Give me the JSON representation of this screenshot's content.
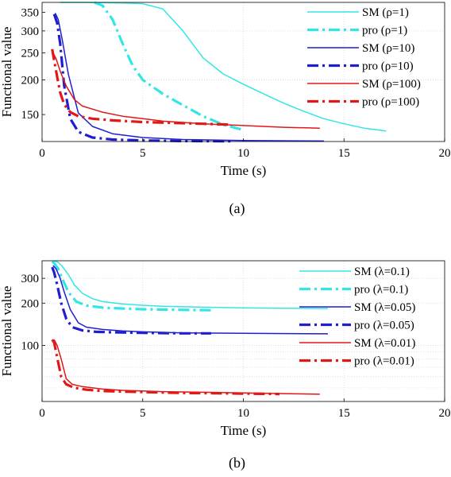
{
  "chart_data": [
    {
      "type": "line",
      "caption": "(a)",
      "xlabel": "Time (s)",
      "ylabel": "Functional value",
      "xlim": [
        0,
        20
      ],
      "ylim": [
        120,
        380
      ],
      "yscale": "log",
      "grid": true,
      "legend_position": "top-right",
      "xticks": [
        0,
        5,
        10,
        15,
        20
      ],
      "xtick_labels": [
        "0",
        "5",
        "10",
        "15",
        "20"
      ],
      "yticks": [
        150,
        200,
        250,
        300,
        350
      ],
      "ytick_labels": [
        "150",
        "200",
        "250",
        "300",
        "350"
      ],
      "series": [
        {
          "name": "SM (ρ=1)",
          "color": "#33e6e6",
          "style": "solid",
          "x": [
            0.9,
            1.5,
            2,
            3,
            4,
            5,
            6,
            7,
            8,
            9,
            10,
            11,
            12,
            13,
            14,
            15,
            16,
            17.1
          ],
          "y": [
            380,
            380,
            380,
            379,
            378,
            376,
            360,
            300,
            240,
            210,
            193,
            178,
            165,
            154,
            145,
            139,
            134,
            131
          ]
        },
        {
          "name": "pro (ρ=1)",
          "color": "#33e6e6",
          "style": "dashdot",
          "x": [
            2.6,
            3,
            3.5,
            4,
            4.5,
            5,
            6,
            7,
            8,
            9,
            10
          ],
          "y": [
            380,
            370,
            330,
            270,
            225,
            200,
            178,
            162,
            148,
            138,
            132
          ]
        },
        {
          "name": "SM (ρ=10)",
          "color": "#1f1fd0",
          "style": "solid",
          "x": [
            0.65,
            0.8,
            1.0,
            1.3,
            1.8,
            2.5,
            3.5,
            5,
            7,
            10,
            14
          ],
          "y": [
            348,
            330,
            280,
            210,
            152,
            136,
            128,
            124,
            122,
            121,
            120.5
          ]
        },
        {
          "name": "pro (ρ=10)",
          "color": "#1f1fd0",
          "style": "dashdot",
          "x": [
            0.6,
            0.75,
            0.9,
            1.1,
            1.4,
            1.8,
            2.5,
            3.5,
            5,
            7,
            9.5
          ],
          "y": [
            345,
            320,
            270,
            190,
            145,
            130,
            124,
            122,
            121,
            120.5,
            120.2
          ]
        },
        {
          "name": "SM (ρ=100)",
          "color": "#e01818",
          "style": "solid",
          "x": [
            0.55,
            0.7,
            0.9,
            1.2,
            1.6,
            2,
            3,
            4,
            5,
            6,
            8,
            10,
            12,
            13.8
          ],
          "y": [
            250,
            238,
            215,
            190,
            170,
            161,
            153,
            148,
            145,
            142,
            139,
            137,
            135,
            134
          ]
        },
        {
          "name": "pro (ρ=100)",
          "color": "#e01818",
          "style": "dashdot",
          "x": [
            0.5,
            0.6,
            0.75,
            0.9,
            1.1,
            1.4,
            1.8,
            2.5,
            3.5,
            5,
            6.5,
            8,
            9.3
          ],
          "y": [
            258,
            235,
            205,
            180,
            163,
            153,
            148,
            145,
            143,
            141,
            140,
            139,
            138
          ]
        }
      ]
    },
    {
      "type": "line",
      "caption": "(b)",
      "xlabel": "Time (s)",
      "ylabel": "Functional value",
      "xlim": [
        0,
        20
      ],
      "ylim": [
        40,
        400
      ],
      "yscale": "log",
      "grid": true,
      "legend_position": "top-right",
      "xticks": [
        0,
        5,
        10,
        15,
        20
      ],
      "xtick_labels": [
        "0",
        "5",
        "10",
        "15",
        "20"
      ],
      "yticks": [
        100,
        200,
        300
      ],
      "ytick_labels": [
        "100",
        "200",
        "300"
      ],
      "series": [
        {
          "name": "SM (λ=0.1)",
          "color": "#33e6e6",
          "style": "solid",
          "x": [
            0.6,
            0.8,
            1.0,
            1.3,
            1.6,
            2,
            2.5,
            3,
            4,
            5,
            6,
            8,
            10,
            12,
            14.2
          ],
          "y": [
            400,
            390,
            365,
            320,
            270,
            235,
            215,
            205,
            197,
            193,
            190,
            187,
            185,
            184,
            183
          ]
        },
        {
          "name": "pro (λ=0.1)",
          "color": "#33e6e6",
          "style": "dashdot",
          "x": [
            0.5,
            0.6,
            0.8,
            1.0,
            1.3,
            1.7,
            2.2,
            3,
            4,
            5,
            6,
            7,
            8.5
          ],
          "y": [
            395,
            385,
            350,
            300,
            240,
            205,
            192,
            186,
            183,
            181,
            180,
            179,
            178
          ]
        },
        {
          "name": "SM (λ=0.05)",
          "color": "#1f1fd0",
          "style": "solid",
          "x": [
            0.55,
            0.7,
            0.9,
            1.1,
            1.4,
            1.8,
            2.2,
            3,
            4,
            5,
            7,
            10,
            14.2
          ],
          "y": [
            370,
            350,
            300,
            240,
            180,
            145,
            135,
            130,
            127,
            125,
            123,
            122,
            121
          ]
        },
        {
          "name": "pro (λ=0.05)",
          "color": "#1f1fd0",
          "style": "dashdot",
          "x": [
            0.5,
            0.6,
            0.75,
            0.95,
            1.2,
            1.5,
            2,
            2.7,
            3.5,
            5,
            7,
            8.4
          ],
          "y": [
            360,
            330,
            270,
            200,
            155,
            135,
            128,
            125,
            124,
            123,
            122,
            122
          ]
        },
        {
          "name": "SM (λ=0.01)",
          "color": "#e01818",
          "style": "solid",
          "x": [
            0.6,
            0.75,
            0.95,
            1.2,
            1.5,
            2,
            3,
            4,
            6,
            8,
            10,
            12,
            13.8
          ],
          "y": [
            110,
            100,
            80,
            58,
            53,
            51,
            49,
            48,
            47,
            46.5,
            46,
            45.5,
            45
          ]
        },
        {
          "name": "pro (λ=0.01)",
          "color": "#e01818",
          "style": "dashdot",
          "x": [
            0.5,
            0.6,
            0.75,
            0.95,
            1.2,
            1.6,
            2.2,
            3,
            4,
            5.5,
            7,
            8.5,
            10,
            11.8
          ],
          "y": [
            110,
            105,
            82,
            60,
            53,
            50,
            48.5,
            47.5,
            47,
            46.5,
            46,
            45.8,
            45.5,
            45.2
          ]
        }
      ]
    }
  ]
}
